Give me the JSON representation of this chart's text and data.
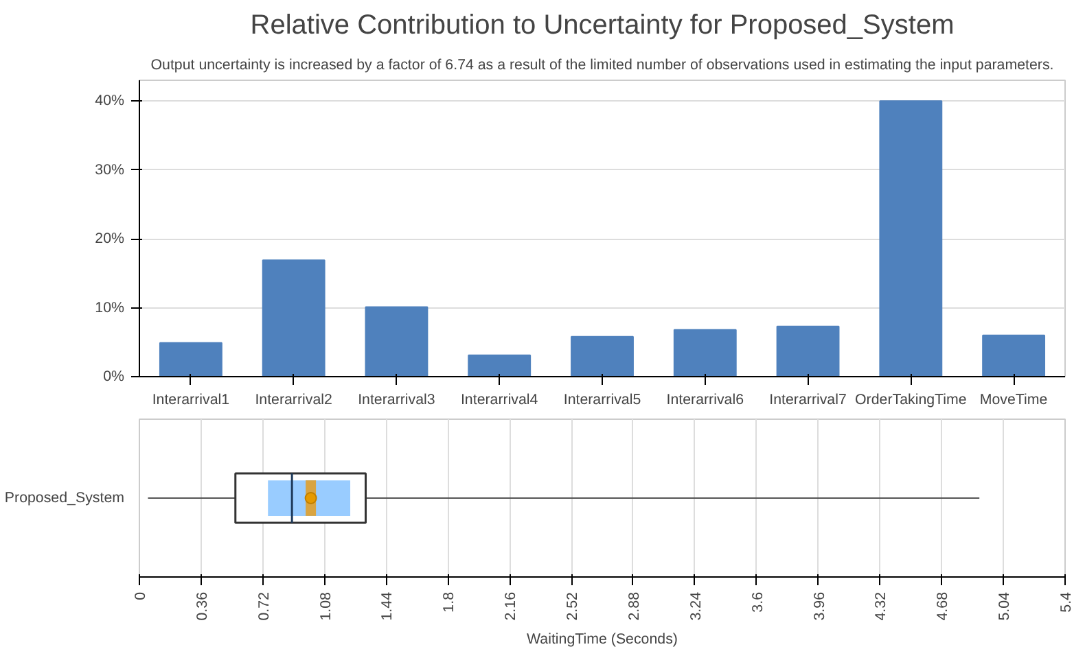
{
  "chart_data": [
    {
      "type": "bar",
      "title": "Relative Contribution to Uncertainty for Proposed_System",
      "subtitle": "Output uncertainty is increased by a factor of 6.74 as a result of the limited number of observations used in estimating the input parameters.",
      "categories": [
        "Interarrival1",
        "Interarrival2",
        "Interarrival3",
        "Interarrival4",
        "Interarrival5",
        "Interarrival6",
        "Interarrival7",
        "OrderTakingTime",
        "MoveTime"
      ],
      "values": [
        4.9,
        16.9,
        10.1,
        3.1,
        5.8,
        6.8,
        7.3,
        40,
        6.0
      ],
      "color": "#4f81bd",
      "ylim": [
        0,
        43
      ],
      "yticks": [
        {
          "value": 0,
          "label": "0%"
        },
        {
          "value": 10,
          "label": "10%"
        },
        {
          "value": 20,
          "label": "20%"
        },
        {
          "value": 30,
          "label": "30%"
        },
        {
          "value": 40,
          "label": "40%"
        }
      ],
      "grid": "y"
    },
    {
      "type": "box",
      "orientation": "horizontal",
      "categories": [
        "Proposed_System"
      ],
      "xlabel": "WaitingTime (Seconds)",
      "boxes": [
        {
          "low": 0.05,
          "q1": 0.56,
          "median": 0.89,
          "q3": 1.32,
          "high": 4.9,
          "mean": 1.0
        }
      ],
      "bands": [
        {
          "axis": "x",
          "from": 0.75,
          "to": 1.23,
          "color": "#99ccff"
        },
        {
          "axis": "x",
          "from": 0.97,
          "to": 1.03,
          "color": "#d9a441"
        }
      ],
      "xlim": [
        0,
        5.4
      ],
      "xticks": [
        0,
        0.36,
        0.72,
        1.08,
        1.44,
        1.8,
        2.16,
        2.52,
        2.88,
        3.24,
        3.6,
        3.96,
        4.32,
        4.68,
        5.04,
        5.4
      ],
      "grid": "x"
    }
  ]
}
